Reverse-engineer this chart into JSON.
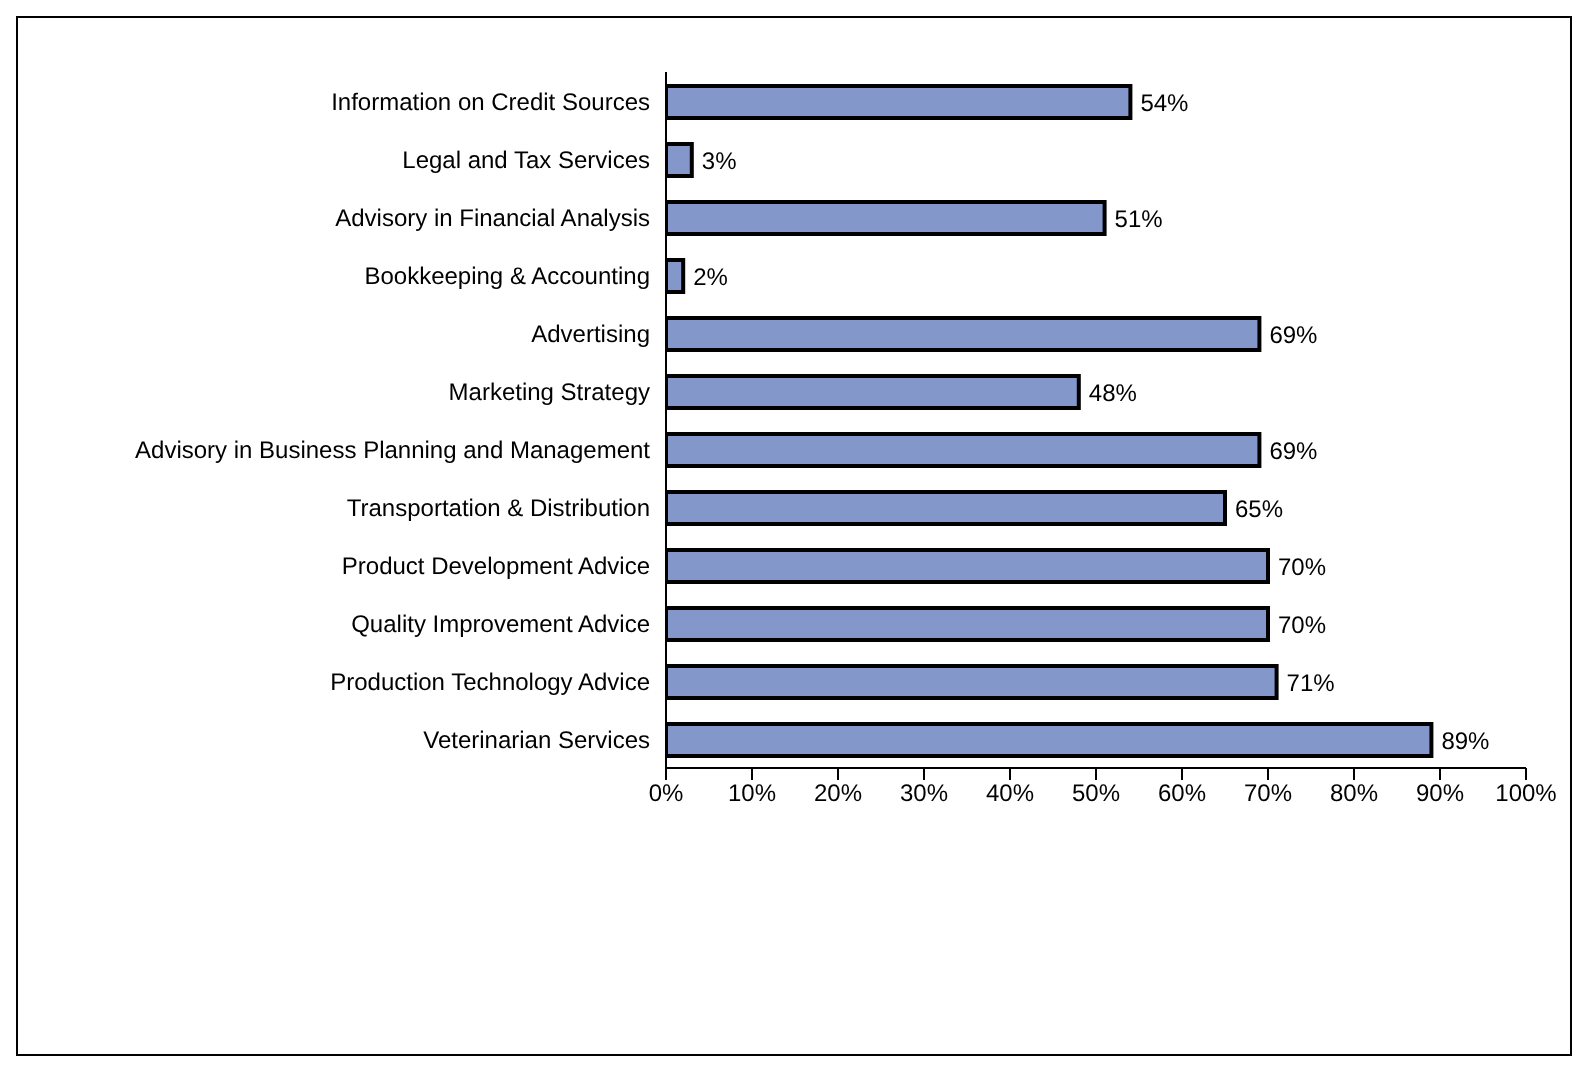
{
  "chart_data": {
    "type": "bar",
    "orientation": "horizontal",
    "categories": [
      "Information on Credit Sources",
      "Legal and Tax Services",
      "Advisory in Financial Analysis",
      "Bookkeeping & Accounting",
      "Advertising",
      "Marketing Strategy",
      "Advisory in Business Planning and Management",
      "Transportation & Distribution",
      "Product Development Advice",
      "Quality Improvement Advice",
      "Production Technology Advice",
      "Veterinarian Services"
    ],
    "values": [
      54,
      3,
      51,
      2,
      69,
      48,
      69,
      65,
      70,
      70,
      71,
      89
    ],
    "value_labels": [
      "54%",
      "3%",
      "51%",
      "2%",
      "69%",
      "48%",
      "69%",
      "65%",
      "70%",
      "70%",
      "71%",
      "89%"
    ],
    "color": "#8497cb",
    "xlim": [
      0,
      100
    ],
    "xticks": [
      {
        "value": 0,
        "label": "0%"
      },
      {
        "value": 10,
        "label": "10%"
      },
      {
        "value": 20,
        "label": "20%"
      },
      {
        "value": 30,
        "label": "30%"
      },
      {
        "value": 40,
        "label": "40%"
      },
      {
        "value": 50,
        "label": "50%"
      },
      {
        "value": 60,
        "label": "60%"
      },
      {
        "value": 70,
        "label": "70%"
      },
      {
        "value": 80,
        "label": "80%"
      },
      {
        "value": 90,
        "label": "90%"
      },
      {
        "value": 100,
        "label": "100%"
      }
    ],
    "grid": false,
    "legend": false
  }
}
